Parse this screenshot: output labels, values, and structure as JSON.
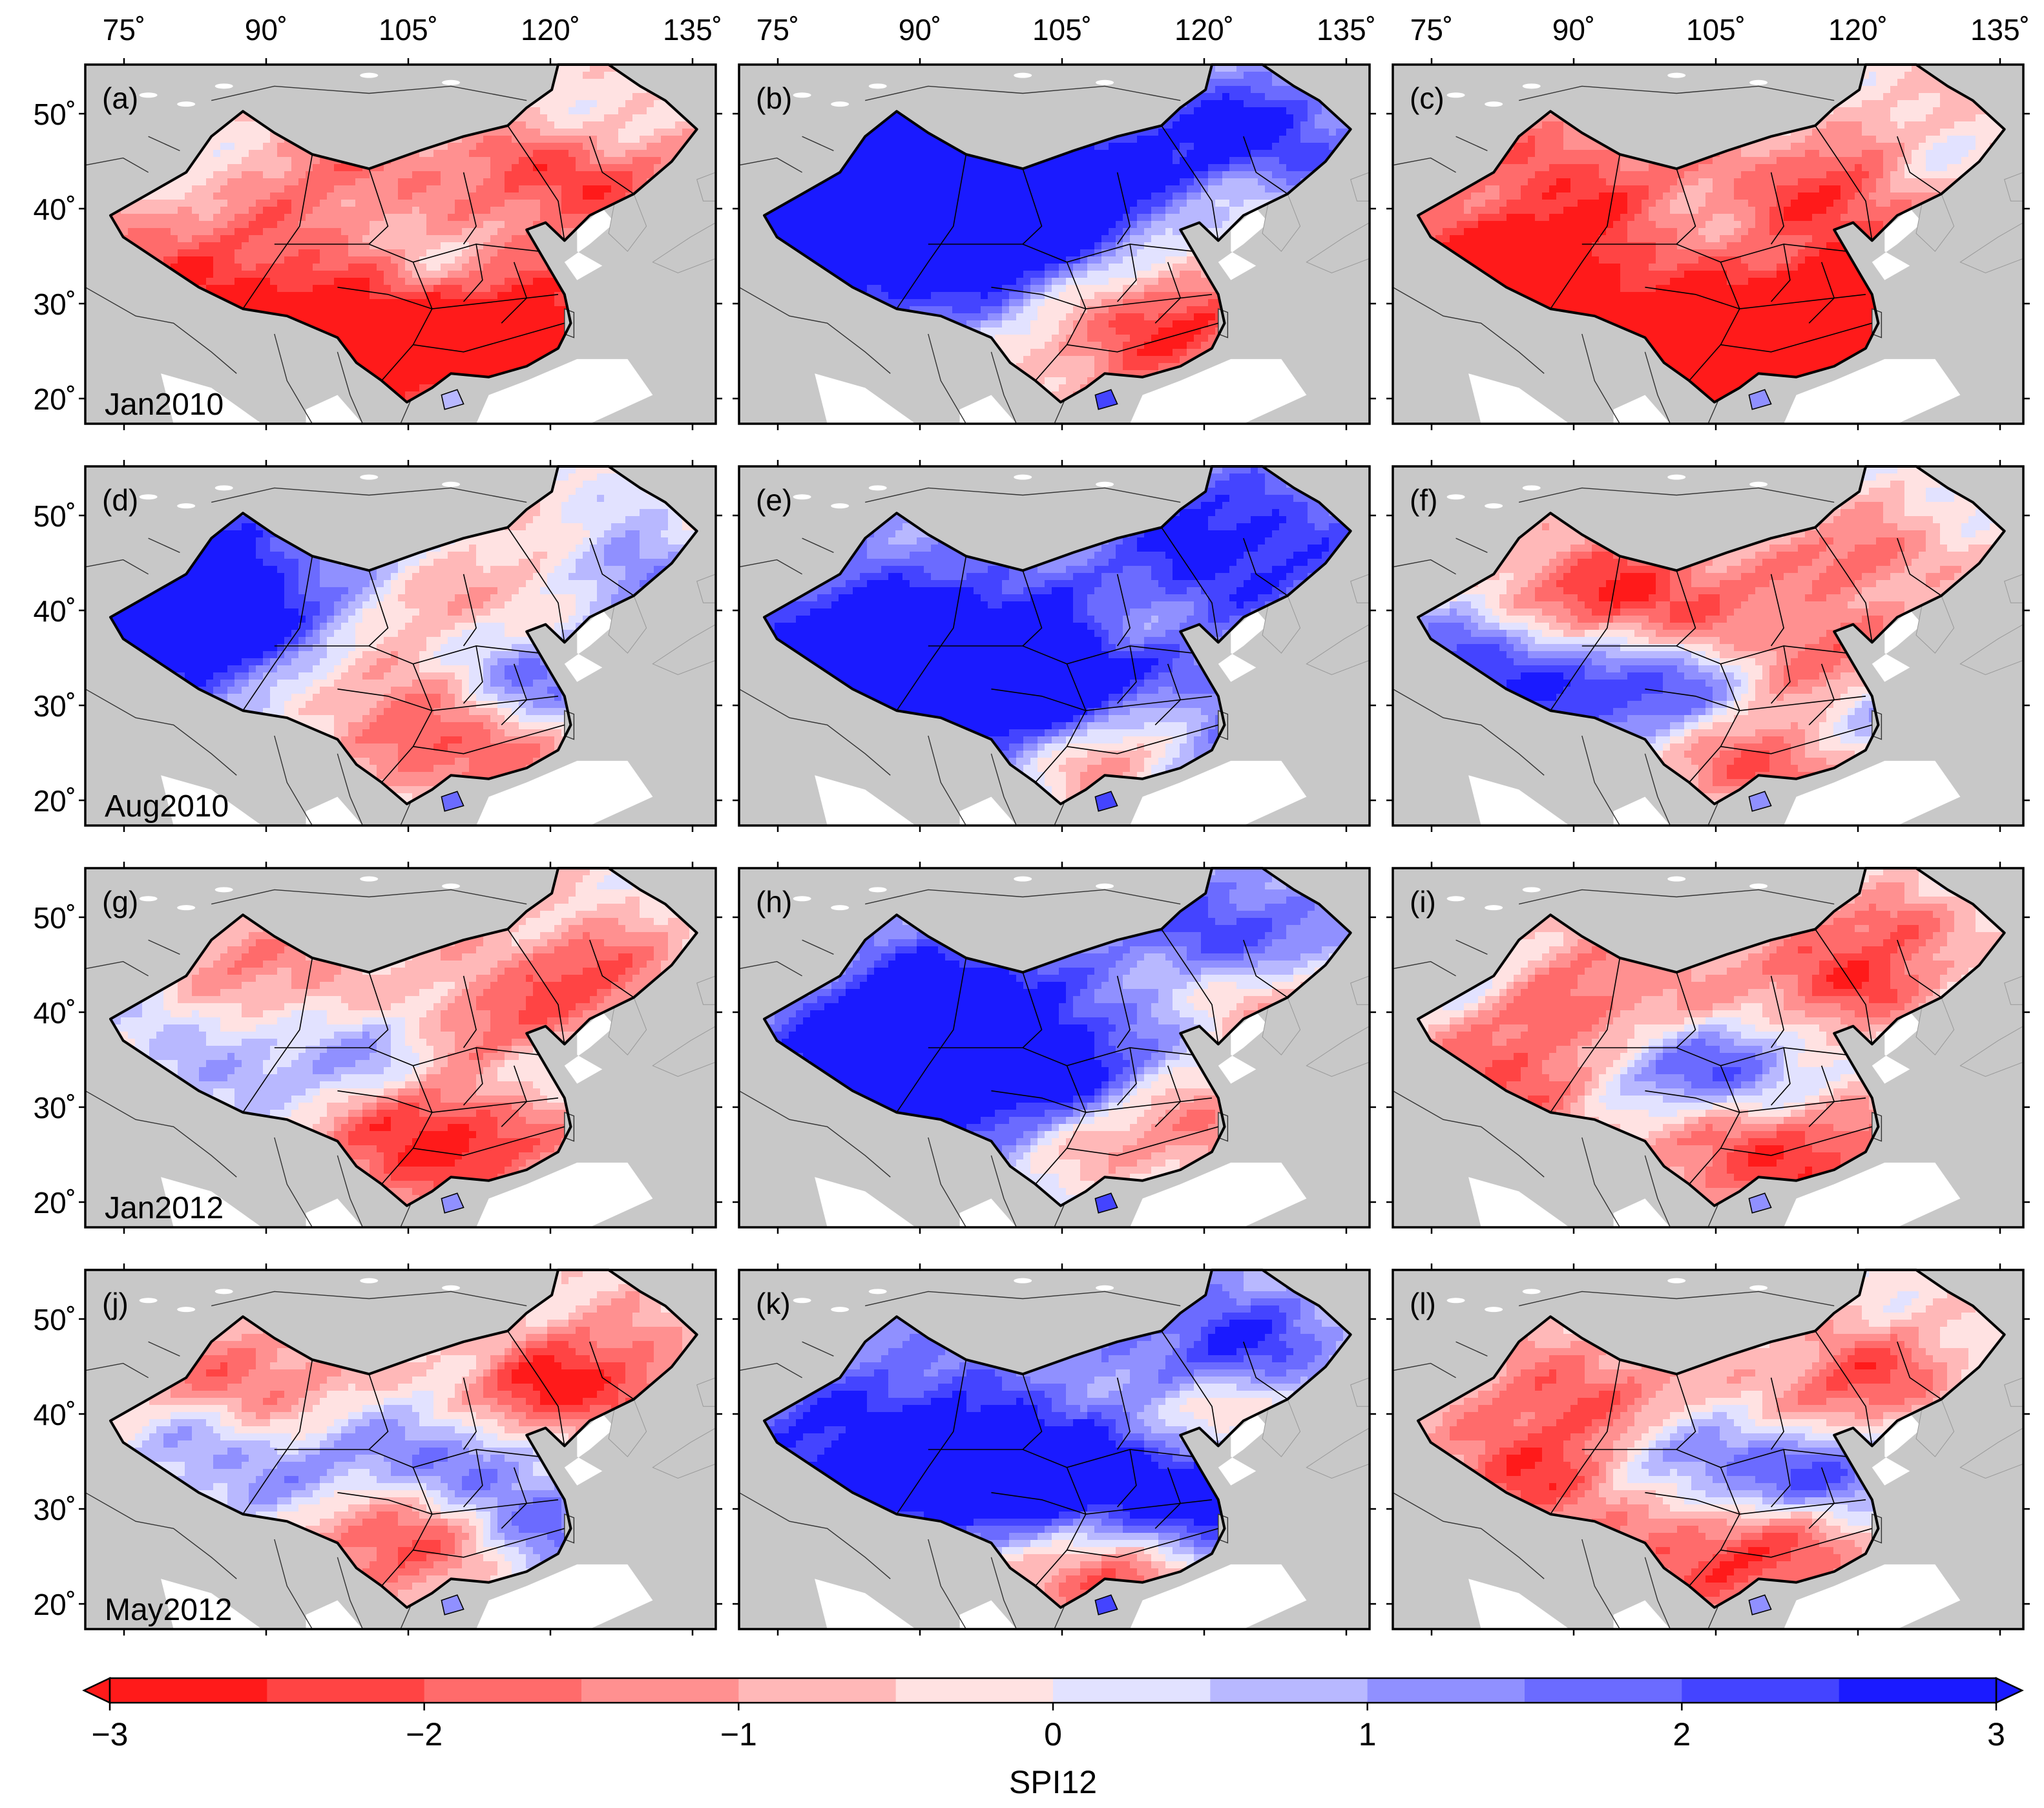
{
  "figure": {
    "lon_ticks": [
      "75˚",
      "90˚",
      "105˚",
      "120˚",
      "135˚"
    ],
    "lat_ticks": [
      "50˚",
      "40˚",
      "30˚",
      "20˚"
    ],
    "rows": [
      {
        "date_label": "Jan2010",
        "panels": [
          "(a)",
          "(b)",
          "(c)"
        ]
      },
      {
        "date_label": "Aug2010",
        "panels": [
          "(d)",
          "(e)",
          "(f)"
        ]
      },
      {
        "date_label": "Jan2012",
        "panels": [
          "(g)",
          "(h)",
          "(i)"
        ]
      },
      {
        "date_label": "May2012",
        "panels": [
          "(j)",
          "(k)",
          "(l)"
        ]
      }
    ],
    "colors": {
      "land": "#c8c8c8",
      "ocean": "#ffffff",
      "border": "#000000"
    }
  },
  "colorbar": {
    "label": "SPI12",
    "tick_labels": [
      "−3",
      "−2",
      "−1",
      "0",
      "1",
      "2",
      "3"
    ],
    "range": [
      -3,
      3
    ],
    "interval": 0.5,
    "colors": [
      "#ff1a1a",
      "#ff4444",
      "#ff6b6b",
      "#ff9090",
      "#ffb8b8",
      "#ffe2e2",
      "#e2e2ff",
      "#b8b8ff",
      "#9090ff",
      "#6b6bff",
      "#4444ff",
      "#1a1aff"
    ]
  },
  "map_fields": [
    [
      {
        "bias": -0.6,
        "hot": [
          [
            0.26,
            0.62,
            1.0,
            -2.6
          ],
          [
            0.52,
            0.78,
            0.9,
            -2.2
          ],
          [
            0.75,
            0.75,
            0.7,
            -1.6
          ],
          [
            0.38,
            0.3,
            0.8,
            -1.8
          ],
          [
            0.78,
            0.3,
            0.6,
            -2.0
          ]
        ],
        "cool": [
          [
            0.38,
            0.48,
            0.9,
            2.0
          ],
          [
            0.15,
            0.22,
            0.6,
            1.6
          ],
          [
            0.8,
            0.15,
            0.5,
            1.2
          ],
          [
            0.55,
            0.55,
            0.4,
            0.9
          ]
        ]
      },
      {
        "bias": 0.8,
        "hot": [
          [
            0.55,
            0.75,
            0.9,
            -2.6
          ],
          [
            0.72,
            0.7,
            0.6,
            -2.0
          ],
          [
            0.8,
            0.4,
            0.4,
            -1.2
          ]
        ],
        "cool": [
          [
            0.2,
            0.4,
            1.2,
            2.2
          ],
          [
            0.45,
            0.35,
            0.8,
            1.8
          ],
          [
            0.8,
            0.2,
            0.6,
            2.0
          ],
          [
            0.4,
            0.58,
            0.9,
            1.6
          ]
        ]
      },
      {
        "bias": -0.5,
        "hot": [
          [
            0.28,
            0.42,
            0.9,
            -2.0
          ],
          [
            0.55,
            0.8,
            1.0,
            -2.4
          ],
          [
            0.75,
            0.72,
            0.8,
            -2.2
          ],
          [
            0.15,
            0.6,
            0.6,
            -2.0
          ],
          [
            0.7,
            0.35,
            0.5,
            -1.6
          ]
        ],
        "cool": [
          [
            0.48,
            0.48,
            0.5,
            1.2
          ],
          [
            0.85,
            0.3,
            0.3,
            0.8
          ],
          [
            0.12,
            0.4,
            0.3,
            0.8
          ]
        ]
      }
    ],
    [
      {
        "bias": 0.2,
        "hot": [
          [
            0.6,
            0.78,
            0.6,
            -2.4
          ],
          [
            0.45,
            0.6,
            0.5,
            -1.4
          ],
          [
            0.75,
            0.3,
            0.5,
            -1.4
          ],
          [
            0.55,
            0.4,
            0.4,
            -1.2
          ]
        ],
        "cool": [
          [
            0.05,
            0.45,
            0.8,
            2.8
          ],
          [
            0.25,
            0.4,
            0.7,
            2.0
          ],
          [
            0.15,
            0.2,
            0.6,
            2.0
          ],
          [
            0.7,
            0.6,
            0.5,
            1.8
          ],
          [
            0.85,
            0.3,
            0.4,
            2.2
          ]
        ]
      },
      {
        "bias": 0.9,
        "hot": [
          [
            0.58,
            0.82,
            0.5,
            -2.4
          ],
          [
            0.72,
            0.68,
            0.4,
            -1.6
          ],
          [
            0.6,
            0.45,
            0.3,
            -1.2
          ]
        ],
        "cool": [
          [
            0.2,
            0.55,
            1.0,
            2.6
          ],
          [
            0.35,
            0.6,
            0.6,
            2.6
          ],
          [
            0.5,
            0.55,
            0.6,
            2.2
          ],
          [
            0.78,
            0.22,
            0.7,
            2.0
          ],
          [
            0.75,
            0.7,
            0.5,
            2.0
          ]
        ]
      },
      {
        "bias": -0.2,
        "hot": [
          [
            0.45,
            0.4,
            0.7,
            -1.8
          ],
          [
            0.6,
            0.82,
            0.5,
            -2.2
          ],
          [
            0.7,
            0.55,
            0.5,
            -1.6
          ],
          [
            0.3,
            0.35,
            0.5,
            -1.4
          ],
          [
            0.75,
            0.25,
            0.4,
            -1.6
          ]
        ],
        "cool": [
          [
            0.25,
            0.62,
            0.6,
            2.6
          ],
          [
            0.45,
            0.6,
            0.5,
            2.2
          ],
          [
            0.78,
            0.72,
            0.5,
            1.8
          ],
          [
            0.1,
            0.5,
            0.4,
            1.6
          ]
        ]
      }
    ],
    [
      {
        "bias": -0.3,
        "hot": [
          [
            0.55,
            0.72,
            0.8,
            -2.8
          ],
          [
            0.25,
            0.35,
            0.7,
            -1.6
          ],
          [
            0.8,
            0.3,
            0.5,
            -1.8
          ],
          [
            0.62,
            0.45,
            0.5,
            -1.4
          ]
        ],
        "cool": [
          [
            0.3,
            0.55,
            0.7,
            2.0
          ],
          [
            0.5,
            0.52,
            0.5,
            1.8
          ],
          [
            0.12,
            0.4,
            0.4,
            1.2
          ],
          [
            0.7,
            0.6,
            0.4,
            1.4
          ]
        ]
      },
      {
        "bias": 0.8,
        "hot": [
          [
            0.55,
            0.75,
            0.7,
            -2.2
          ],
          [
            0.75,
            0.7,
            0.5,
            -1.8
          ],
          [
            0.82,
            0.35,
            0.5,
            -2.0
          ]
        ],
        "cool": [
          [
            0.25,
            0.6,
            0.9,
            2.8
          ],
          [
            0.5,
            0.58,
            0.6,
            2.6
          ],
          [
            0.35,
            0.35,
            0.6,
            2.0
          ],
          [
            0.78,
            0.2,
            0.5,
            2.0
          ]
        ]
      },
      {
        "bias": -0.2,
        "hot": [
          [
            0.3,
            0.4,
            0.8,
            -1.8
          ],
          [
            0.6,
            0.78,
            0.7,
            -2.4
          ],
          [
            0.72,
            0.3,
            0.5,
            -2.2
          ],
          [
            0.8,
            0.15,
            0.3,
            -1.4
          ],
          [
            0.2,
            0.6,
            0.5,
            -1.4
          ]
        ],
        "cool": [
          [
            0.55,
            0.58,
            0.5,
            2.4
          ],
          [
            0.4,
            0.55,
            0.5,
            1.8
          ],
          [
            0.12,
            0.3,
            0.4,
            1.2
          ]
        ]
      }
    ],
    [
      {
        "bias": -0.2,
        "hot": [
          [
            0.5,
            0.72,
            0.6,
            -2.8
          ],
          [
            0.25,
            0.35,
            0.7,
            -2.0
          ],
          [
            0.82,
            0.3,
            0.6,
            -2.0
          ],
          [
            0.7,
            0.35,
            0.4,
            -1.4
          ]
        ],
        "cool": [
          [
            0.3,
            0.55,
            0.7,
            1.8
          ],
          [
            0.55,
            0.55,
            0.6,
            2.0
          ],
          [
            0.72,
            0.7,
            0.5,
            2.0
          ],
          [
            0.15,
            0.45,
            0.4,
            1.2
          ]
        ]
      },
      {
        "bias": 0.8,
        "hot": [
          [
            0.5,
            0.8,
            0.6,
            -2.2
          ],
          [
            0.75,
            0.4,
            0.4,
            -1.8
          ],
          [
            0.6,
            0.88,
            0.4,
            -2.0
          ]
        ],
        "cool": [
          [
            0.25,
            0.55,
            1.0,
            2.6
          ],
          [
            0.52,
            0.6,
            0.6,
            2.8
          ],
          [
            0.78,
            0.62,
            0.5,
            2.4
          ],
          [
            0.78,
            0.2,
            0.5,
            1.8
          ]
        ]
      },
      {
        "bias": -0.2,
        "hot": [
          [
            0.3,
            0.4,
            0.7,
            -2.0
          ],
          [
            0.55,
            0.78,
            0.7,
            -2.4
          ],
          [
            0.75,
            0.3,
            0.5,
            -2.0
          ],
          [
            0.2,
            0.6,
            0.5,
            -1.4
          ]
        ],
        "cool": [
          [
            0.55,
            0.58,
            0.5,
            2.4
          ],
          [
            0.72,
            0.58,
            0.4,
            2.0
          ],
          [
            0.42,
            0.48,
            0.4,
            1.4
          ]
        ]
      }
    ]
  ]
}
